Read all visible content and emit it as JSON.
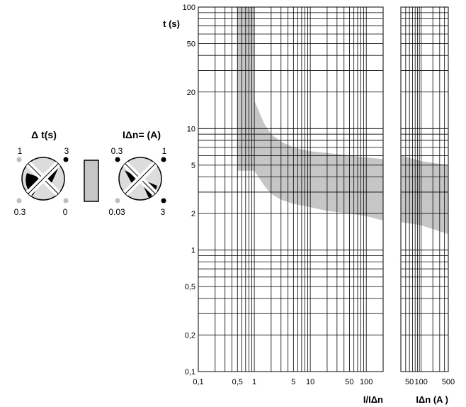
{
  "left_panel": {
    "delay_dial": {
      "title": "Δ t(s)",
      "values": {
        "top_left": "1",
        "top_right": "3",
        "bottom_left": "0.3",
        "bottom_right": "0"
      }
    },
    "current_dial": {
      "title": "IΔn= (A)",
      "values": {
        "top_left": "0.3",
        "top_right": "1",
        "bottom_left": "0.03",
        "bottom_right": "3"
      }
    }
  },
  "colors": {
    "band": "#c6c6c6",
    "grid": "#000000",
    "dot_dark": "#000000",
    "dot_light": "#bdbdbd",
    "dial_fill": "#dcdcdc"
  },
  "chart_data": [
    {
      "type": "area",
      "ylabel": "t (s)",
      "xlabel": "I/IΔn",
      "x_scale": "log",
      "y_scale": "log",
      "xlim": [
        0.1,
        200
      ],
      "ylim": [
        0.1,
        100
      ],
      "x_ticks": [
        {
          "value": 0.1,
          "label": "0,1"
        },
        {
          "value": 0.5,
          "label": "0,5"
        },
        {
          "value": 1,
          "label": "1"
        },
        {
          "value": 5,
          "label": "5"
        },
        {
          "value": 10,
          "label": "10"
        },
        {
          "value": 50,
          "label": "50"
        },
        {
          "value": 100,
          "label": "100"
        }
      ],
      "y_ticks": [
        {
          "value": 0.1,
          "label": "0,1"
        },
        {
          "value": 0.2,
          "label": "0,2"
        },
        {
          "value": 0.5,
          "label": "0,5"
        },
        {
          "value": 1,
          "label": "1"
        },
        {
          "value": 2,
          "label": "2"
        },
        {
          "value": 5,
          "label": "5"
        },
        {
          "value": 10,
          "label": "10"
        },
        {
          "value": 20,
          "label": "20"
        },
        {
          "value": 50,
          "label": "50"
        },
        {
          "value": 100,
          "label": "100"
        }
      ],
      "grid": true,
      "band": {
        "upper": [
          [
            0.5,
            100
          ],
          [
            1,
            100
          ],
          [
            1,
            17
          ],
          [
            1.5,
            11
          ],
          [
            2,
            9
          ],
          [
            3,
            7.8
          ],
          [
            5,
            7
          ],
          [
            10,
            6.5
          ],
          [
            20,
            6.3
          ],
          [
            50,
            6
          ],
          [
            100,
            5.8
          ],
          [
            200,
            5.6
          ]
        ],
        "lower": [
          [
            0.5,
            4.5
          ],
          [
            1,
            4.5
          ],
          [
            1.5,
            3.4
          ],
          [
            2,
            2.9
          ],
          [
            3,
            2.6
          ],
          [
            5,
            2.4
          ],
          [
            10,
            2.25
          ],
          [
            20,
            2.1
          ],
          [
            50,
            2
          ],
          [
            100,
            1.9
          ],
          [
            200,
            1.75
          ]
        ]
      }
    },
    {
      "type": "area",
      "xlabel": "IΔn (A )",
      "x_scale": "log",
      "y_scale": "log",
      "xlim": [
        30,
        500
      ],
      "ylim": [
        0.1,
        100
      ],
      "x_ticks": [
        {
          "value": 50,
          "label": "50"
        },
        {
          "value": 100,
          "label": "100"
        },
        {
          "value": 500,
          "label": "500"
        }
      ],
      "grid": true,
      "band": {
        "upper": [
          [
            30,
            6
          ],
          [
            100,
            5.4
          ],
          [
            500,
            5
          ]
        ],
        "lower": [
          [
            30,
            1.7
          ],
          [
            100,
            1.6
          ],
          [
            500,
            1.35
          ]
        ]
      }
    }
  ]
}
